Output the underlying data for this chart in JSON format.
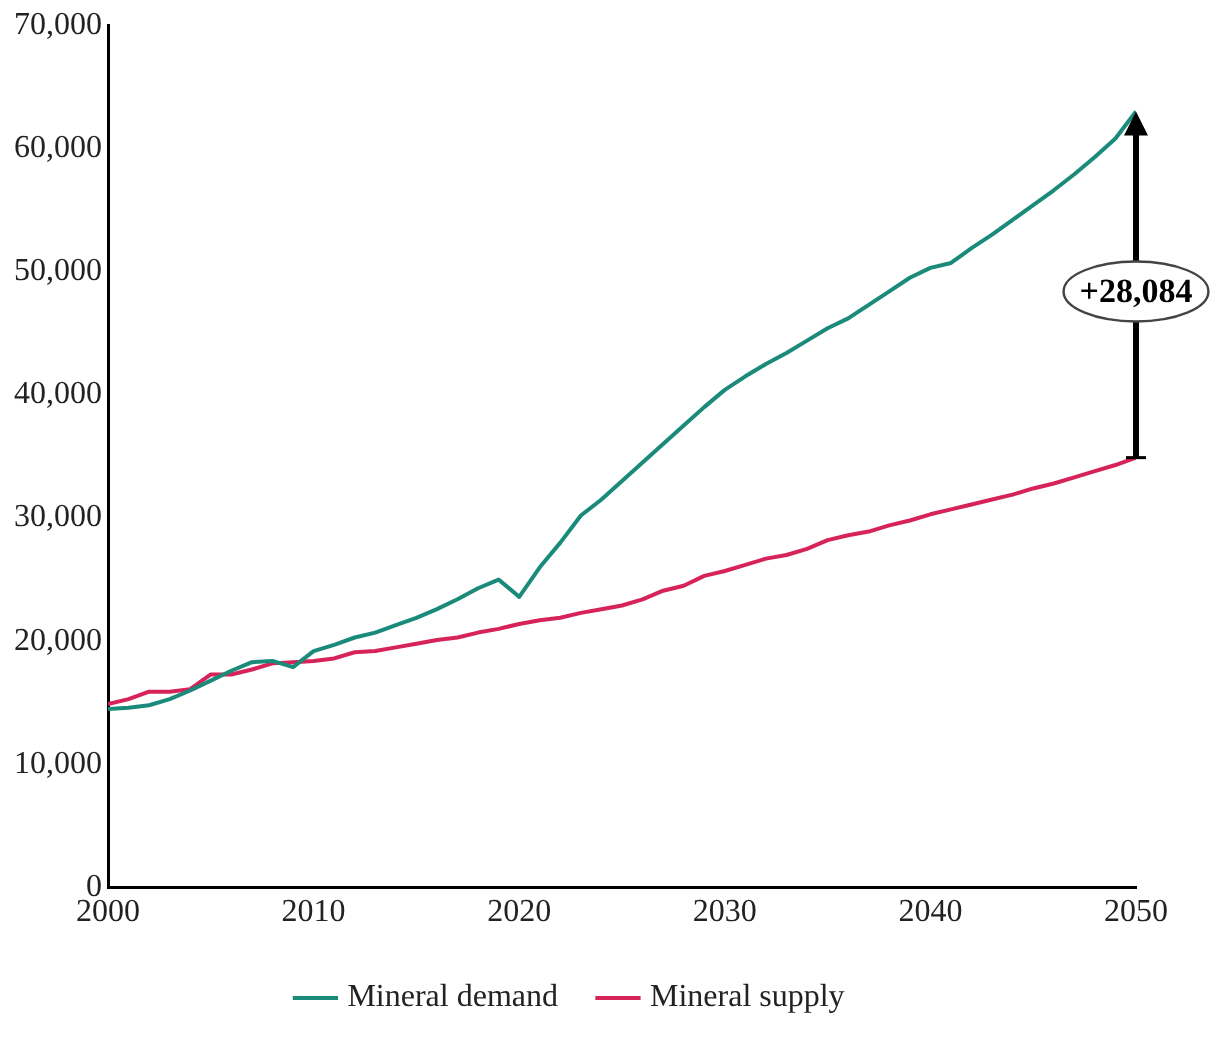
{
  "chart_data": {
    "type": "line",
    "x": [
      2000,
      2001,
      2002,
      2003,
      2004,
      2005,
      2006,
      2007,
      2008,
      2009,
      2010,
      2011,
      2012,
      2013,
      2014,
      2015,
      2016,
      2017,
      2018,
      2019,
      2020,
      2021,
      2022,
      2023,
      2024,
      2025,
      2026,
      2027,
      2028,
      2029,
      2030,
      2031,
      2032,
      2033,
      2034,
      2035,
      2036,
      2037,
      2038,
      2039,
      2040,
      2041,
      2042,
      2043,
      2044,
      2045,
      2046,
      2047,
      2048,
      2049,
      2050
    ],
    "series": [
      {
        "name": "Mineral demand",
        "color": "#1a8a7a",
        "values": [
          14500,
          14600,
          14800,
          15300,
          16000,
          16800,
          17600,
          18300,
          18400,
          17900,
          19200,
          19700,
          20300,
          20700,
          21300,
          21900,
          22600,
          23400,
          24300,
          25000,
          23600,
          26000,
          28000,
          30200,
          31500,
          33000,
          34500,
          36000,
          37500,
          39000,
          40400,
          41500,
          42500,
          43400,
          44400,
          45400,
          46200,
          47300,
          48400,
          49500,
          50300,
          50700,
          51900,
          53000,
          54200,
          55400,
          56600,
          57900,
          59300,
          60800,
          63000
        ]
      },
      {
        "name": "Mineral supply",
        "color": "#d6245a",
        "values": [
          14900,
          15300,
          15900,
          15900,
          16100,
          17300,
          17300,
          17700,
          18200,
          18300,
          18400,
          18600,
          19100,
          19200,
          19500,
          19800,
          20100,
          20300,
          20700,
          21000,
          21400,
          21700,
          21900,
          22300,
          22600,
          22900,
          23400,
          24100,
          24500,
          25300,
          25700,
          26200,
          26700,
          27000,
          27500,
          28200,
          28600,
          28900,
          29400,
          29800,
          30300,
          30700,
          31100,
          31500,
          31900,
          32400,
          32800,
          33300,
          33800,
          34300,
          34900
        ]
      }
    ],
    "xlim": [
      2000,
      2050
    ],
    "xticks": [
      2000,
      2010,
      2020,
      2030,
      2040,
      2050
    ],
    "ylim": [
      0,
      70000
    ],
    "yticks": [
      0,
      {
        "value": 10000,
        "label": "10,000"
      },
      {
        "value": 20000,
        "label": "20,000"
      },
      {
        "value": 30000,
        "label": "30,000"
      },
      {
        "value": 40000,
        "label": "40,000"
      },
      {
        "value": 50000,
        "label": "50,000"
      },
      {
        "value": 60000,
        "label": "60,000"
      },
      {
        "value": 70000,
        "label": "70,000"
      }
    ],
    "grid": false,
    "legend": "bottom",
    "marker": "none",
    "line_style": "solid",
    "annotations": [
      "+28,084"
    ]
  }
}
